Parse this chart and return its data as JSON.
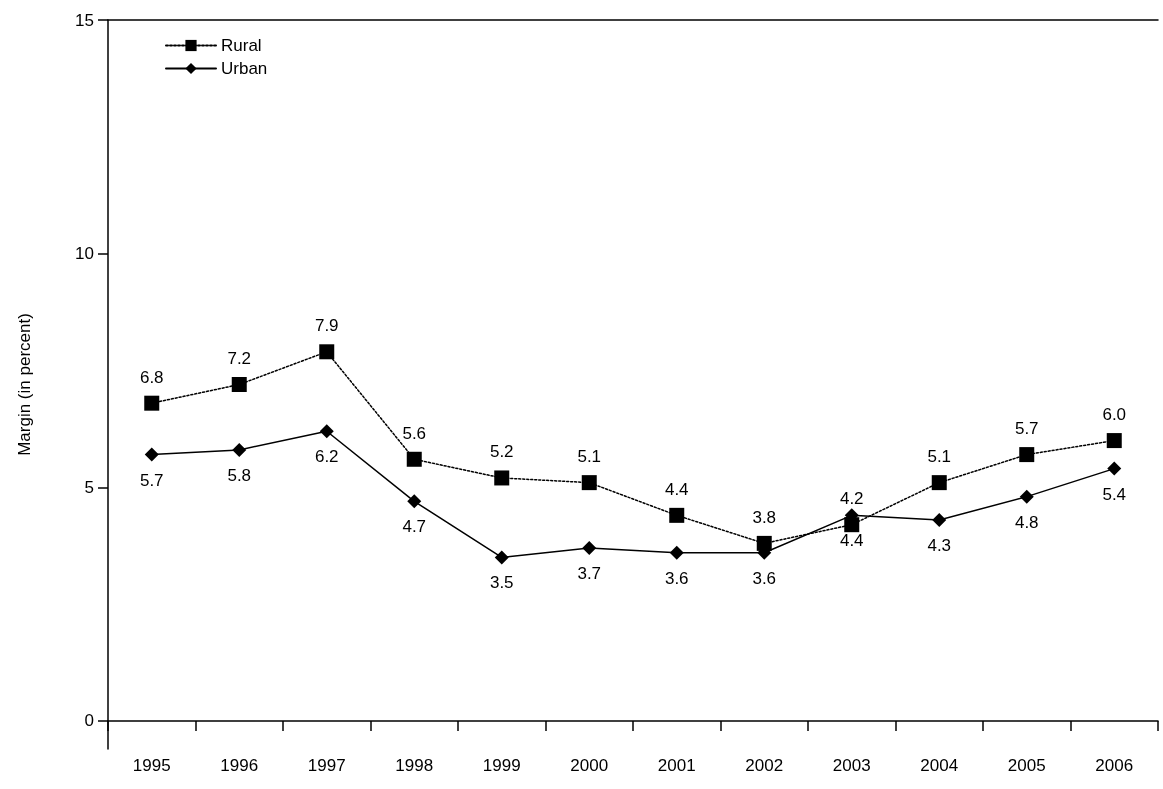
{
  "chart_data": {
    "type": "line",
    "ylabel": "Margin (in percent)",
    "categories": [
      "1995",
      "1996",
      "1997",
      "1998",
      "1999",
      "2000",
      "2001",
      "2002",
      "2003",
      "2004",
      "2005",
      "2006"
    ],
    "series": [
      {
        "name": "Rural",
        "color": "#000000",
        "marker": "square",
        "line_style": "dotted",
        "values": [
          6.8,
          7.2,
          7.9,
          5.6,
          5.2,
          5.1,
          4.4,
          3.8,
          4.2,
          5.1,
          5.7,
          6.0
        ],
        "value_labels": [
          "6.8",
          "7.2",
          "7.9",
          "5.6",
          "5.2",
          "5.1",
          "4.4",
          "3.8",
          "4.2",
          "5.1",
          "5.7",
          "6.0"
        ]
      },
      {
        "name": "Urban",
        "color": "#000000",
        "marker": "diamond",
        "line_style": "solid",
        "values": [
          5.7,
          5.8,
          6.2,
          4.7,
          3.5,
          3.7,
          3.6,
          3.6,
          4.4,
          4.3,
          4.8,
          5.4
        ],
        "value_labels": [
          "5.7",
          "5.8",
          "6.2",
          "4.7",
          "3.5",
          "3.7",
          "3.6",
          "3.6",
          "4.4",
          "4.3",
          "4.8",
          "5.4"
        ]
      }
    ],
    "ylim": [
      -0.6,
      15
    ],
    "yticks": [
      0,
      5,
      10,
      15
    ],
    "grid": false,
    "legend": "top left"
  }
}
